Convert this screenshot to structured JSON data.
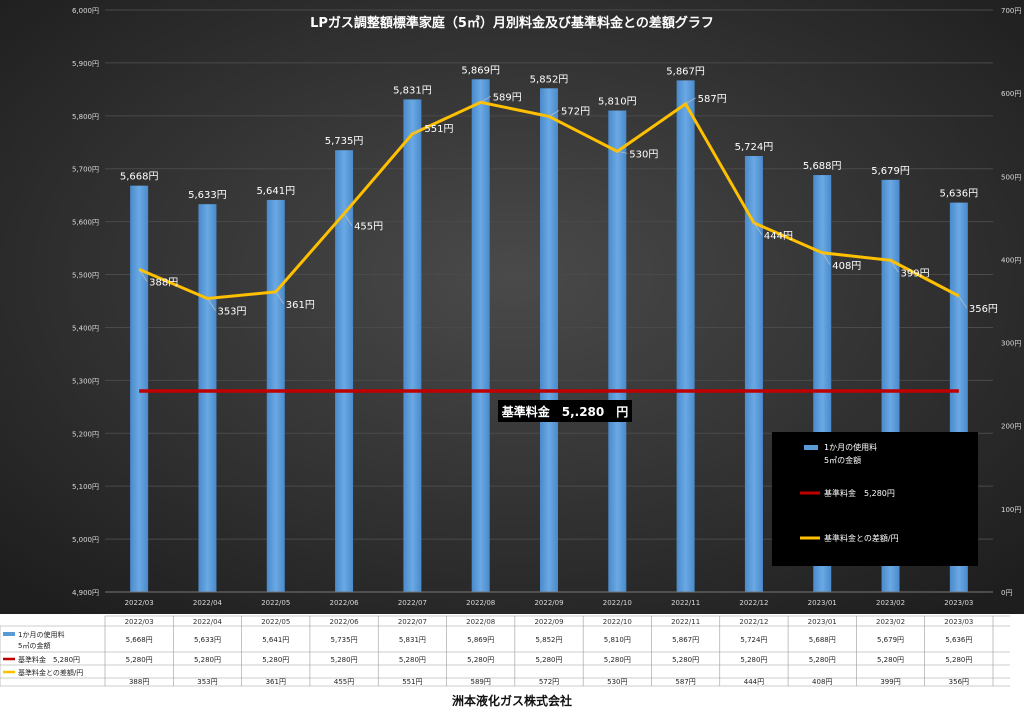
{
  "chart_data": {
    "type": "bar",
    "title": "LPガス調整額標準家庭（5㎥）月別料金及び基準料金との差額グラフ",
    "categories": [
      "2022/03",
      "2022/04",
      "2022/05",
      "2022/06",
      "2022/07",
      "2022/08",
      "2022/09",
      "2022/10",
      "2022/11",
      "2022/12",
      "2023/01",
      "2023/02",
      "2023/03"
    ],
    "y_left": {
      "min": 4900,
      "max": 6000,
      "step": 100,
      "tick_labels": [
        "4,900円",
        "5,000円",
        "5,100円",
        "5,200円",
        "5,300円",
        "5,400円",
        "5,500円",
        "5,600円",
        "5,700円",
        "5,800円",
        "5,900円",
        "6,000円"
      ]
    },
    "y_right": {
      "min": 0,
      "max": 700,
      "step": 100,
      "tick_labels": [
        "0円",
        "100円",
        "200円",
        "300円",
        "400円",
        "500円",
        "600円",
        "700円"
      ]
    },
    "series": [
      {
        "name": "1か月の使用料\n5㎥の金額",
        "kind": "bar",
        "axis": "left",
        "color": "#5b9bd5",
        "values": [
          5668,
          5633,
          5641,
          5735,
          5831,
          5869,
          5852,
          5810,
          5867,
          5724,
          5688,
          5679,
          5636
        ],
        "labels": [
          "5,668円",
          "5,633円",
          "5,641円",
          "5,735円",
          "5,831円",
          "5,869円",
          "5,852円",
          "5,810円",
          "5,867円",
          "5,724円",
          "5,688円",
          "5,679円",
          "5,636円"
        ]
      },
      {
        "name": "基準料金　5,280円",
        "kind": "line",
        "axis": "left",
        "color": "#c00000",
        "values": [
          5280,
          5280,
          5280,
          5280,
          5280,
          5280,
          5280,
          5280,
          5280,
          5280,
          5280,
          5280,
          5280
        ],
        "labels": [
          "5,280円",
          "5,280円",
          "5,280円",
          "5,280円",
          "5,280円",
          "5,280円",
          "5,280円",
          "5,280円",
          "5,280円",
          "5,280円",
          "5,280円",
          "5,280円",
          "5,280円"
        ]
      },
      {
        "name": "基準料金との差額/円",
        "kind": "line",
        "axis": "right",
        "color": "#ffc000",
        "values": [
          388,
          353,
          361,
          455,
          551,
          589,
          572,
          530,
          587,
          444,
          408,
          399,
          356
        ],
        "labels": [
          "388円",
          "353円",
          "361円",
          "455円",
          "551円",
          "589円",
          "572円",
          "530円",
          "587円",
          "444円",
          "408円",
          "399円",
          "356円"
        ]
      }
    ],
    "annotation": "基準料金　5,.280　円",
    "legend_position": "bottom-right inside plot",
    "grid": true
  },
  "footer": "洲本液化ガス株式会社",
  "colors": {
    "background": "#2b2b2b",
    "grid": "#4a4a4a",
    "axis_text": "#d9d9d9",
    "label_text": "#ffffff"
  }
}
